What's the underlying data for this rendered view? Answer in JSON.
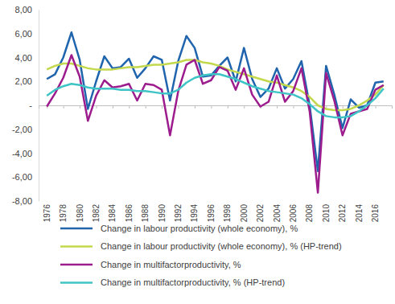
{
  "chart_data": {
    "type": "line",
    "x": [
      1976,
      1977,
      1978,
      1979,
      1980,
      1981,
      1982,
      1983,
      1984,
      1985,
      1986,
      1987,
      1988,
      1989,
      1990,
      1991,
      1992,
      1993,
      1994,
      1995,
      1996,
      1997,
      1998,
      1999,
      2000,
      2001,
      2002,
      2003,
      2004,
      2005,
      2006,
      2007,
      2008,
      2009,
      2010,
      2011,
      2012,
      2013,
      2014,
      2015,
      2016,
      2017
    ],
    "xlim": [
      1975,
      2018
    ],
    "xticks": [
      1976,
      1978,
      1980,
      1982,
      1984,
      1986,
      1988,
      1990,
      1992,
      1994,
      1996,
      1998,
      2000,
      2002,
      2004,
      2006,
      2008,
      2010,
      2012,
      2014,
      2016
    ],
    "ylim": [
      -8,
      8
    ],
    "yticks": [
      {
        "value": -8,
        "label": "-8,00"
      },
      {
        "value": -6,
        "label": "-6,00"
      },
      {
        "value": -4,
        "label": "-4,00"
      },
      {
        "value": -2,
        "label": "-2,00"
      },
      {
        "value": 0,
        "label": "-"
      },
      {
        "value": 2,
        "label": "2,00"
      },
      {
        "value": 4,
        "label": "4,00"
      },
      {
        "value": 6,
        "label": "6,00"
      },
      {
        "value": 8,
        "label": "8,00"
      }
    ],
    "grid": false,
    "legend": "bottom",
    "series": [
      {
        "name": "Change in labour productivity (whole economy), %",
        "color": "#1f64ad",
        "values": [
          2.2,
          2.6,
          4.0,
          6.1,
          3.8,
          -0.3,
          2.0,
          4.1,
          3.1,
          3.2,
          3.9,
          2.3,
          3.1,
          4.1,
          3.8,
          0.4,
          3.7,
          5.8,
          4.8,
          2.4,
          2.5,
          3.3,
          4.0,
          2.0,
          4.8,
          2.2,
          0.7,
          1.4,
          3.1,
          1.4,
          2.2,
          3.7,
          0.0,
          -5.5,
          3.3,
          0.9,
          -1.9,
          0.5,
          -0.2,
          0.0,
          1.9,
          2.0
        ]
      },
      {
        "name": "Change in labour productivity (whole economy), % (HP-trend)",
        "color": "#c3d84c",
        "values": [
          3.0,
          3.3,
          3.5,
          3.5,
          3.3,
          3.1,
          3.0,
          3.0,
          3.0,
          3.1,
          3.2,
          3.2,
          3.3,
          3.4,
          3.4,
          3.5,
          3.6,
          3.8,
          3.8,
          3.6,
          3.5,
          3.3,
          3.0,
          2.8,
          2.6,
          2.4,
          2.2,
          2.0,
          1.9,
          1.7,
          1.5,
          1.2,
          0.7,
          0.0,
          -0.3,
          -0.4,
          -0.4,
          -0.3,
          0.0,
          0.4,
          0.9,
          1.7
        ]
      },
      {
        "name": "Change in multifactorproductivity, %",
        "color": "#9c1c8e",
        "values": [
          -0.1,
          1.0,
          2.3,
          4.2,
          2.4,
          -1.3,
          0.8,
          2.1,
          1.5,
          1.6,
          1.8,
          0.4,
          1.8,
          1.7,
          1.3,
          -2.5,
          1.2,
          3.4,
          3.8,
          1.8,
          2.1,
          3.2,
          2.9,
          1.3,
          3.1,
          0.9,
          -0.1,
          0.3,
          2.5,
          0.3,
          1.2,
          3.1,
          -0.5,
          -7.3,
          2.7,
          0.4,
          -2.5,
          -0.7,
          -0.5,
          -0.3,
          1.3,
          1.7
        ]
      },
      {
        "name": "Change in multifactorproductivity, % (HP-trend)",
        "color": "#3fc4c6",
        "values": [
          0.8,
          1.3,
          1.6,
          1.8,
          1.7,
          1.5,
          1.4,
          1.4,
          1.4,
          1.3,
          1.3,
          1.2,
          1.2,
          1.1,
          1.0,
          1.0,
          1.3,
          1.9,
          2.3,
          2.5,
          2.6,
          2.6,
          2.4,
          2.2,
          1.9,
          1.6,
          1.4,
          1.2,
          1.1,
          1.0,
          0.9,
          0.6,
          0.1,
          -0.5,
          -0.9,
          -1.0,
          -1.0,
          -0.9,
          -0.5,
          0.0,
          0.6,
          1.4
        ]
      }
    ]
  }
}
